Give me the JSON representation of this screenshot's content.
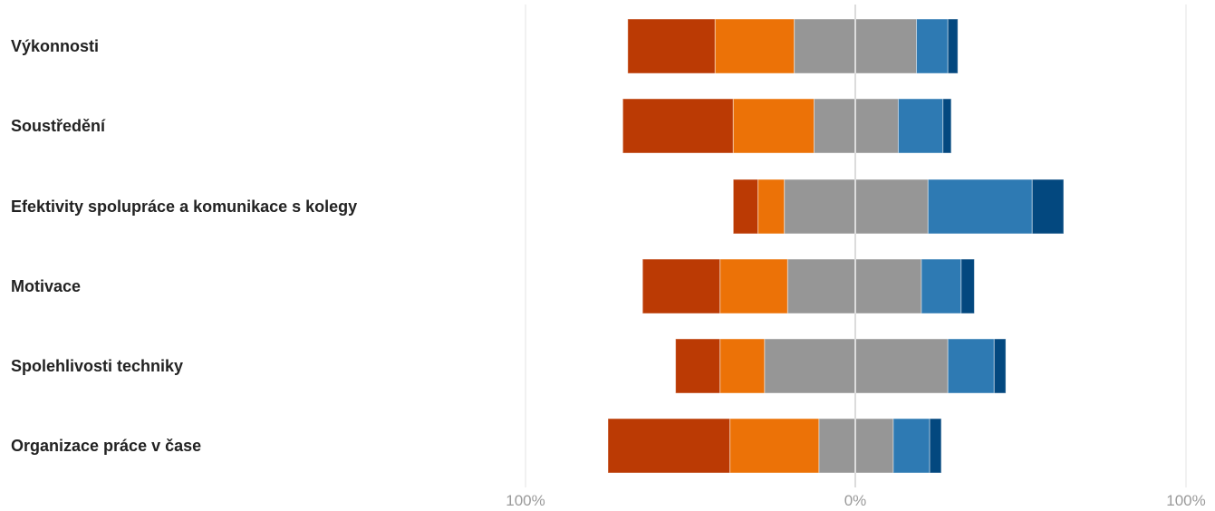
{
  "chart_data": {
    "type": "bar",
    "subtype": "diverging-stacked",
    "categories": [
      "Výkonnosti",
      "Soustředění",
      "Efektivity spolupráce a komunikace s kolegy",
      "Motivace",
      "Spolehlivosti techniky",
      "Organizace práce v čase"
    ],
    "series": [
      {
        "color": "#bb3a04",
        "values": [
          -26.5,
          -33.5,
          -7.5,
          -23.5,
          -13.5,
          -37
        ]
      },
      {
        "color": "#ec7207",
        "values": [
          -24,
          -24.5,
          -8,
          -20.5,
          -13.5,
          -27
        ]
      },
      {
        "color": "#969696",
        "values": [
          -18.5,
          -12.5,
          -21.5,
          -20.5,
          -27.5,
          -11
        ]
      },
      {
        "color": "#969696",
        "values": [
          18.5,
          13,
          22,
          20,
          28,
          11.5
        ]
      },
      {
        "color": "#2e7ab3",
        "values": [
          9.5,
          13.5,
          31.5,
          12,
          14,
          11
        ]
      },
      {
        "color": "#03487f",
        "values": [
          3,
          2.5,
          9.5,
          4,
          3.5,
          3.5
        ]
      }
    ],
    "xlim": [
      -100,
      100
    ],
    "xticks": [
      "100%",
      "0%",
      "100%"
    ],
    "grid": true,
    "legend": "none"
  }
}
